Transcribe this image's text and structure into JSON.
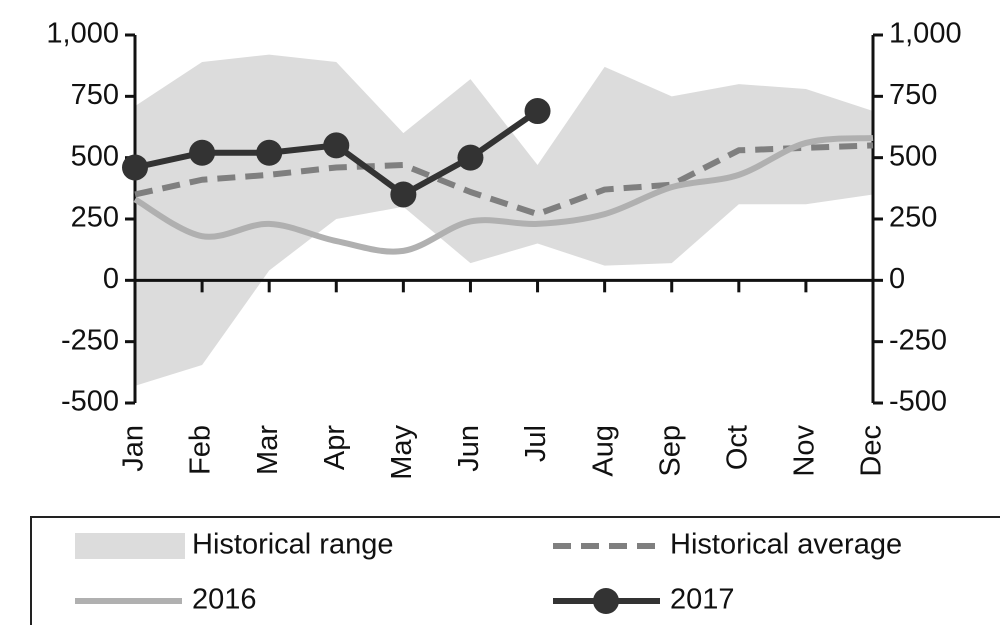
{
  "chart_data": {
    "type": "line",
    "categories": [
      "Jan",
      "Feb",
      "Mar",
      "Apr",
      "May",
      "Jun",
      "Jul",
      "Aug",
      "Sep",
      "Oct",
      "Nov",
      "Dec"
    ],
    "range": {
      "name": "Historical range",
      "color": "#dcdcdc",
      "upper": [
        710,
        890,
        920,
        890,
        600,
        820,
        470,
        870,
        750,
        800,
        780,
        690
      ],
      "lower": [
        -430,
        -345,
        40,
        250,
        300,
        70,
        150,
        60,
        70,
        310,
        310,
        350
      ]
    },
    "series": [
      {
        "name": "Historical average",
        "color": "#7f7f7f",
        "style": "dashed",
        "values": [
          350,
          410,
          430,
          460,
          470,
          360,
          270,
          370,
          390,
          530,
          540,
          550
        ]
      },
      {
        "name": "2016",
        "color": "#b0b0b0",
        "style": "smooth",
        "values": [
          330,
          180,
          230,
          160,
          120,
          240,
          230,
          270,
          380,
          430,
          560,
          580
        ]
      },
      {
        "name": "2017",
        "color": "#333333",
        "style": "markers",
        "values": [
          460,
          520,
          520,
          550,
          350,
          500,
          690,
          null,
          null,
          null,
          null,
          null
        ]
      }
    ],
    "ylim": [
      -500,
      1000
    ],
    "yticks": [
      {
        "value": 1000,
        "label": "1,000"
      },
      750,
      500,
      250,
      0,
      -250,
      -500
    ],
    "y2lim": [
      -500,
      1000
    ],
    "y2ticks": [
      {
        "value": 1000,
        "label": "1,000"
      },
      750,
      500,
      250,
      0,
      -250,
      -500
    ]
  }
}
